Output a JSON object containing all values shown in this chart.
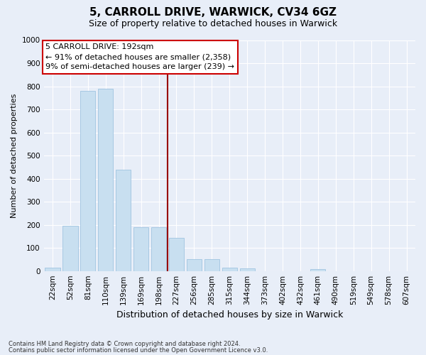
{
  "title1": "5, CARROLL DRIVE, WARWICK, CV34 6GZ",
  "title2": "Size of property relative to detached houses in Warwick",
  "xlabel": "Distribution of detached houses by size in Warwick",
  "ylabel": "Number of detached properties",
  "categories": [
    "22sqm",
    "52sqm",
    "81sqm",
    "110sqm",
    "139sqm",
    "169sqm",
    "198sqm",
    "227sqm",
    "256sqm",
    "285sqm",
    "315sqm",
    "344sqm",
    "373sqm",
    "402sqm",
    "432sqm",
    "461sqm",
    "490sqm",
    "519sqm",
    "549sqm",
    "578sqm",
    "607sqm"
  ],
  "values": [
    15,
    195,
    780,
    790,
    440,
    190,
    190,
    145,
    50,
    50,
    15,
    12,
    0,
    0,
    0,
    8,
    0,
    0,
    0,
    0,
    0
  ],
  "bar_color": "#c8dff0",
  "bar_edge_color": "#a0c4e0",
  "vline_x_index": 6,
  "vline_color": "#990000",
  "annotation_line1": "5 CARROLL DRIVE: 192sqm",
  "annotation_line2": "← 91% of detached houses are smaller (2,358)",
  "annotation_line3": "9% of semi-detached houses are larger (239) →",
  "annotation_box_color": "#ffffff",
  "annotation_box_edge_color": "#cc0000",
  "ylim": [
    0,
    1000
  ],
  "yticks": [
    0,
    100,
    200,
    300,
    400,
    500,
    600,
    700,
    800,
    900,
    1000
  ],
  "footer1": "Contains HM Land Registry data © Crown copyright and database right 2024.",
  "footer2": "Contains public sector information licensed under the Open Government Licence v3.0.",
  "bg_color": "#e8eef8",
  "grid_color": "#ffffff",
  "title1_fontsize": 11,
  "title2_fontsize": 9,
  "ylabel_fontsize": 8,
  "xlabel_fontsize": 9,
  "tick_fontsize": 7.5,
  "annotation_fontsize": 8
}
